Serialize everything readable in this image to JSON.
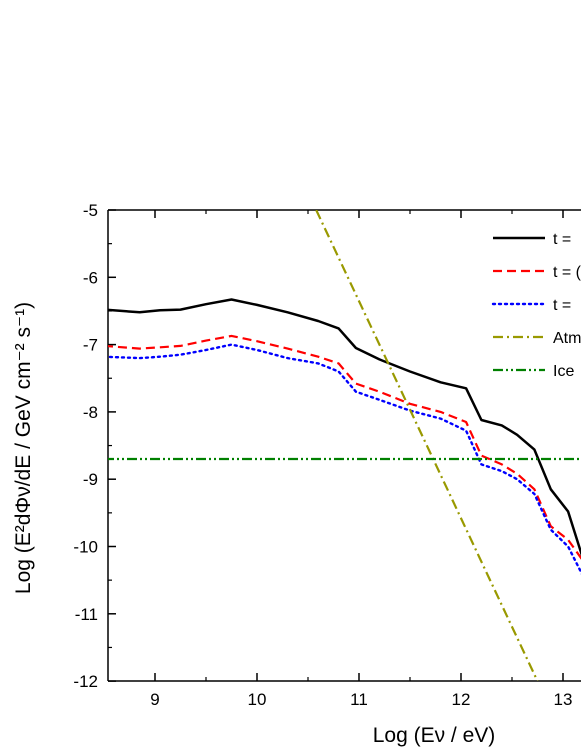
{
  "chart_data": {
    "type": "line",
    "title": "",
    "xlabel": "Log (Eν / eV)",
    "ylabel": "Log (E²dΦν/dE / GeV cm⁻² s⁻¹)",
    "xlim": [
      8.5,
      13.3
    ],
    "ylim": [
      -12,
      -5
    ],
    "xticks": [
      9,
      10,
      11,
      12,
      13
    ],
    "yticks": [
      -12,
      -11,
      -10,
      -9,
      -8,
      -7,
      -6,
      -5
    ],
    "xtick_labels": [
      "9",
      "10",
      "11",
      "12",
      "13"
    ],
    "ytick_labels": [
      "-12",
      "-11",
      "-10",
      "-9",
      "-8",
      "-7",
      "-6",
      "-5"
    ],
    "grid": false,
    "legend_position": "top-right",
    "series": [
      {
        "name": "t =",
        "color": "#000000",
        "style": "solid",
        "x": [
          8.5,
          8.85,
          9.05,
          9.25,
          9.5,
          9.75,
          10.0,
          10.3,
          10.6,
          10.8,
          10.97,
          11.2,
          11.5,
          11.8,
          12.05,
          12.2,
          12.4,
          12.55,
          12.72,
          12.88,
          13.05,
          13.2,
          13.3
        ],
        "y": [
          -6.48,
          -6.52,
          -6.49,
          -6.48,
          -6.4,
          -6.33,
          -6.41,
          -6.52,
          -6.65,
          -6.76,
          -7.05,
          -7.22,
          -7.4,
          -7.56,
          -7.65,
          -8.12,
          -8.2,
          -8.34,
          -8.56,
          -9.15,
          -9.48,
          -10.2,
          -10.4
        ]
      },
      {
        "name": "t = (",
        "color": "#ff0000",
        "style": "dashed",
        "x": [
          8.5,
          8.85,
          9.05,
          9.25,
          9.5,
          9.75,
          10.0,
          10.3,
          10.6,
          10.8,
          10.97,
          11.2,
          11.5,
          11.8,
          12.05,
          12.2,
          12.4,
          12.55,
          12.72,
          12.88,
          13.05,
          13.2,
          13.3
        ],
        "y": [
          -7.02,
          -7.06,
          -7.04,
          -7.02,
          -6.94,
          -6.87,
          -6.95,
          -7.06,
          -7.18,
          -7.28,
          -7.58,
          -7.7,
          -7.88,
          -8.0,
          -8.15,
          -8.65,
          -8.78,
          -8.92,
          -9.15,
          -9.7,
          -9.9,
          -10.22,
          -10.45
        ]
      },
      {
        "name": "t =",
        "color": "#0000ff",
        "style": "dotted",
        "x": [
          8.5,
          8.85,
          9.05,
          9.25,
          9.5,
          9.75,
          10.0,
          10.3,
          10.6,
          10.8,
          10.97,
          11.2,
          11.5,
          11.8,
          12.05,
          12.2,
          12.4,
          12.55,
          12.72,
          12.88,
          13.05,
          13.2,
          13.3
        ],
        "y": [
          -7.18,
          -7.2,
          -7.18,
          -7.15,
          -7.08,
          -7.0,
          -7.08,
          -7.2,
          -7.28,
          -7.4,
          -7.7,
          -7.82,
          -7.98,
          -8.1,
          -8.28,
          -8.78,
          -8.88,
          -9.0,
          -9.22,
          -9.75,
          -10.0,
          -10.45,
          -10.78
        ]
      },
      {
        "name": "Atm",
        "color": "#999900",
        "style": "dashdot",
        "x": [
          10.58,
          12.75
        ],
        "y": [
          -5.0,
          -12.0
        ]
      },
      {
        "name": "Ice",
        "color": "#008000",
        "style": "dashdotdot",
        "x": [
          8.5,
          13.3
        ],
        "y": [
          -8.7,
          -8.7
        ]
      }
    ]
  }
}
